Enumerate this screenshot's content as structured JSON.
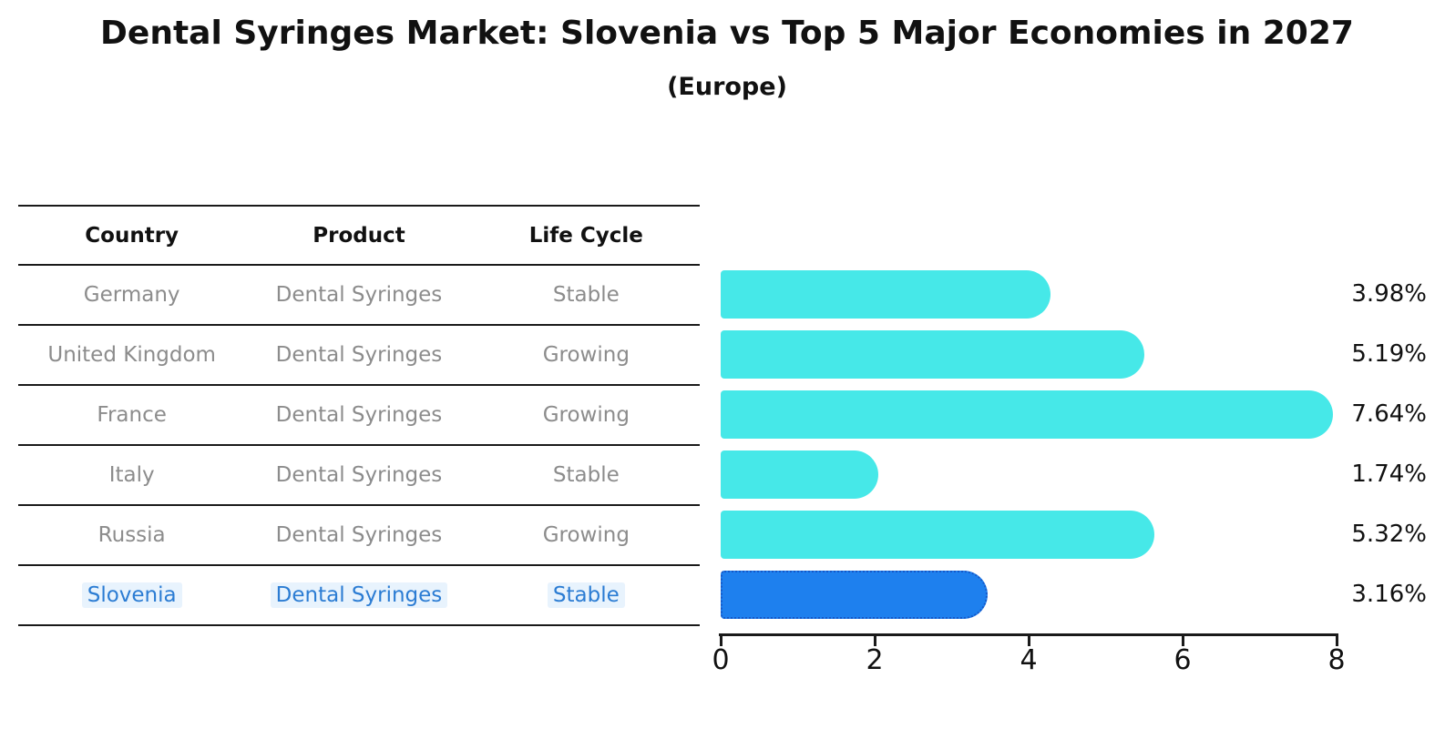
{
  "title": "Dental Syringes Market: Slovenia vs Top 5 Major Economies in 2027",
  "subtitle": "(Europe)",
  "table": {
    "headers": [
      "Country",
      "Product",
      "Life Cycle"
    ],
    "rows": [
      {
        "country": "Germany",
        "product": "Dental Syringes",
        "life_cycle": "Stable",
        "highlight": false
      },
      {
        "country": "United Kingdom",
        "product": "Dental Syringes",
        "life_cycle": "Growing",
        "highlight": false
      },
      {
        "country": "France",
        "product": "Dental Syringes",
        "life_cycle": "Growing",
        "highlight": false
      },
      {
        "country": "Italy",
        "product": "Dental Syringes",
        "life_cycle": "Stable",
        "highlight": false
      },
      {
        "country": "Russia",
        "product": "Dental Syringes",
        "life_cycle": "Growing",
        "highlight": false
      },
      {
        "country": "Slovenia",
        "product": "Dental Syringes",
        "life_cycle": "Stable",
        "highlight": true
      }
    ]
  },
  "chart_data": {
    "type": "bar",
    "orientation": "horizontal",
    "title": "Dental Syringes Market: Slovenia vs Top 5 Major Economies in 2027",
    "subtitle": "(Europe)",
    "categories": [
      "Germany",
      "United Kingdom",
      "France",
      "Italy",
      "Russia",
      "Slovenia"
    ],
    "values": [
      3.98,
      5.19,
      7.64,
      1.74,
      5.32,
      3.16
    ],
    "value_labels": [
      "3.98%",
      "5.19%",
      "7.64%",
      "1.74%",
      "5.32%",
      "3.16%"
    ],
    "highlight_index": 5,
    "xlim": [
      0,
      8
    ],
    "xticks": [
      "0",
      "2",
      "4",
      "6",
      "8"
    ],
    "grid": false,
    "legend": false,
    "ylabel": "",
    "xlabel": ""
  },
  "colors": {
    "bar": "#46e8e8",
    "highlight_bar": "#1e80ee",
    "highlight_border": "#1558c8",
    "highlight_text": "#2b7cd3",
    "table_text": "#8c8c8c",
    "line": "#1a1a1a",
    "background": "#ffffff"
  }
}
